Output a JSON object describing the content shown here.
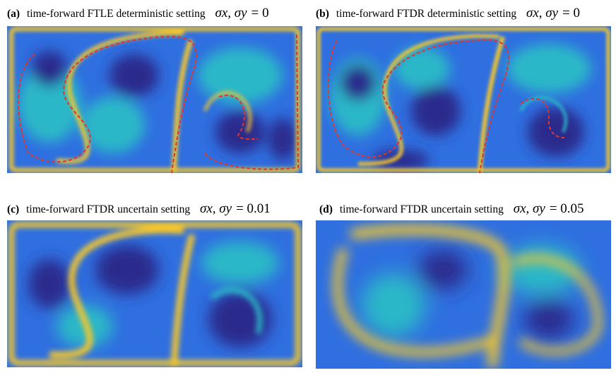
{
  "panels": [
    {
      "tag": "(a)",
      "title": "time-forward FTLE  deterministic setting",
      "sigma_sym": "σx, σy =",
      "sigma_val": "0"
    },
    {
      "tag": "(b)",
      "title": "time-forward FTDR  deterministic setting",
      "sigma_sym": "σx, σy =",
      "sigma_val": "0"
    },
    {
      "tag": "(c)",
      "title": "time-forward FTDR  uncertain setting",
      "sigma_sym": "σx, σy =",
      "sigma_val": "0.01"
    },
    {
      "tag": "(d)",
      "title": "time-forward FTDR   uncertain setting",
      "sigma_sym": "σx, σy =",
      "sigma_val": "0.05"
    }
  ],
  "colors": {
    "deep": "#2c2a8c",
    "blue": "#2f6fe0",
    "cyan": "#2ab8c8",
    "yellow": "#f6c72a",
    "ridge": "#e0352b"
  }
}
